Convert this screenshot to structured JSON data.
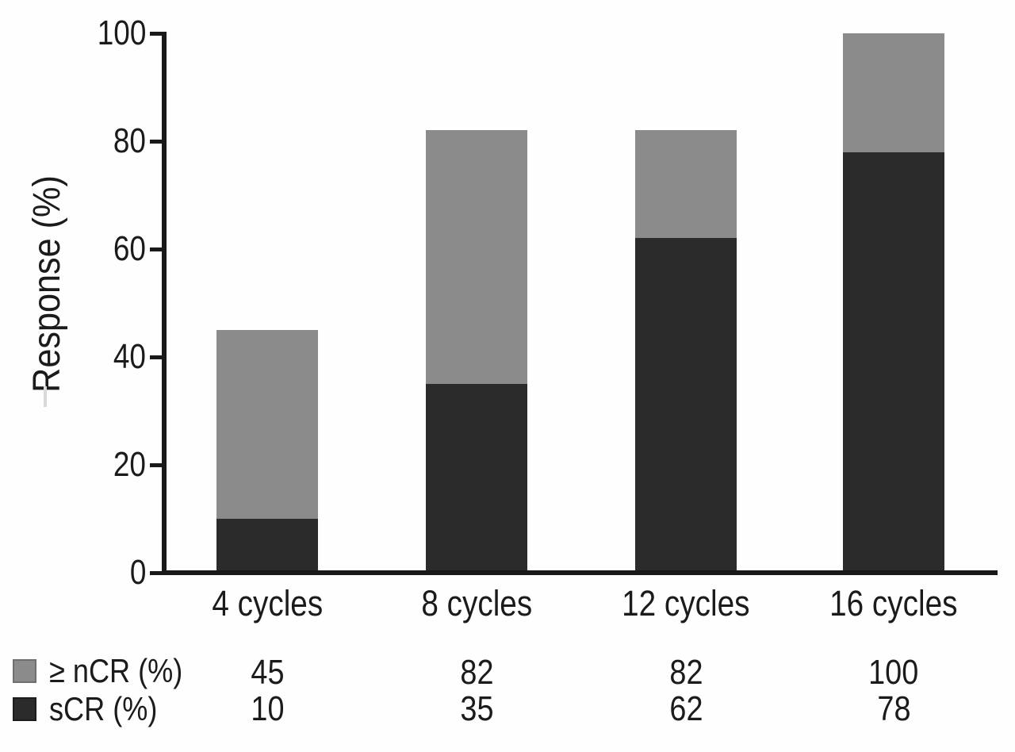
{
  "figure": {
    "background": "#fefefe",
    "axis_color": "#191919",
    "text_color": "#1b1b1b"
  },
  "chart_data": {
    "type": "bar",
    "stacked": true,
    "cumulative_totals": true,
    "title": "",
    "xlabel": "",
    "ylabel": "Response (%)",
    "ylim": [
      0,
      100
    ],
    "yticks": [
      0,
      20,
      40,
      60,
      80,
      100
    ],
    "ytick_labels": [
      "0",
      "20",
      "40",
      "60",
      "80",
      "100"
    ],
    "categories": [
      "4 cycles",
      "8 cycles",
      "12 cycles",
      "16 cycles"
    ],
    "series": [
      {
        "name": "≥ nCR (%)",
        "color": "#8b8b8b",
        "edge": "#6f6f6f",
        "values": [
          45,
          82,
          82,
          100
        ]
      },
      {
        "name": "sCR (%)",
        "color": "#2b2b2b",
        "edge": "#1c1c1c",
        "values": [
          10,
          35,
          62,
          78
        ]
      }
    ],
    "grid": false,
    "legend_position": "bottom-left-table",
    "note": "series 0 values are cumulative bar totals; series 1 (sCR) is the dark lower portion of each bar"
  }
}
